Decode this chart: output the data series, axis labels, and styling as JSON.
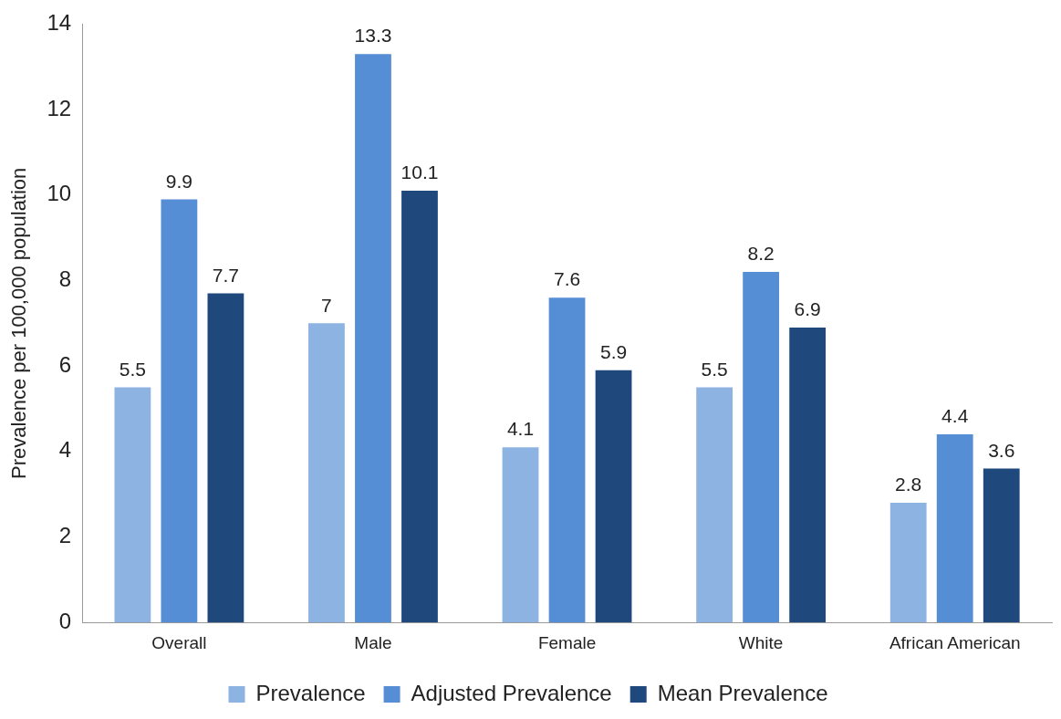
{
  "chart_data": {
    "type": "bar",
    "ylabel": "Prevalence per 100,000 population",
    "categories": [
      "Overall",
      "Male",
      "Female",
      "White",
      "African American"
    ],
    "series": [
      {
        "name": "Prevalence",
        "color": "#8db3e2",
        "values": [
          5.5,
          7,
          4.1,
          5.5,
          2.8
        ]
      },
      {
        "name": "Adjusted Prevalence",
        "color": "#558ed5",
        "values": [
          9.9,
          13.3,
          7.6,
          8.2,
          4.4
        ]
      },
      {
        "name": "Mean Prevalence",
        "color": "#1f497d",
        "values": [
          7.7,
          10.1,
          5.9,
          6.9,
          3.6
        ]
      }
    ],
    "ylim": [
      0,
      14
    ],
    "yticks": [
      0,
      2,
      4,
      6,
      8,
      10,
      12,
      14
    ],
    "grid": false,
    "legend": "bottom",
    "data_labels": true
  }
}
